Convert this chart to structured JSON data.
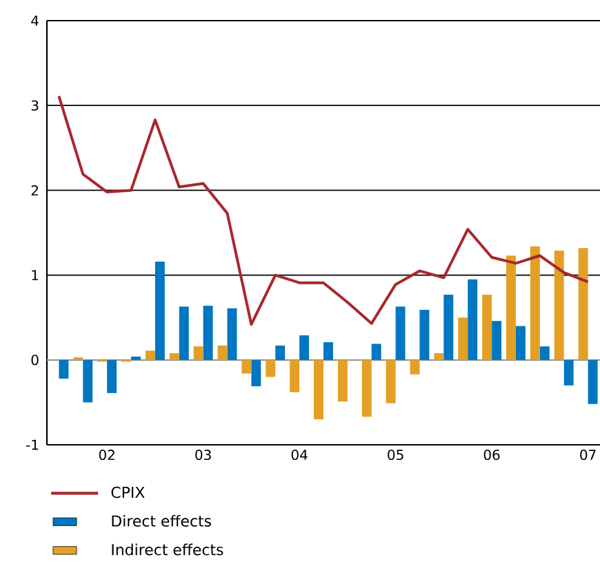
{
  "chart_data": {
    "type": "bar",
    "categories": [
      null,
      null,
      "02",
      null,
      null,
      null,
      "03",
      null,
      null,
      null,
      "04",
      null,
      null,
      null,
      "05",
      null,
      null,
      null,
      "06",
      null,
      null,
      null,
      "07"
    ],
    "series": [
      {
        "name": "CPIX",
        "type": "line",
        "color": "#a8272d",
        "values": [
          3.11,
          2.19,
          1.98,
          2.0,
          2.83,
          2.04,
          2.08,
          1.73,
          0.42,
          1.0,
          0.91,
          0.91,
          0.68,
          0.43,
          0.89,
          1.05,
          0.97,
          1.54,
          1.21,
          1.14,
          1.23,
          1.03,
          0.92
        ]
      },
      {
        "name": "Direct effects",
        "color": "#0077c0",
        "values": [
          -0.22,
          -0.5,
          -0.39,
          0.04,
          1.16,
          0.63,
          0.64,
          0.61,
          -0.31,
          0.17,
          0.29,
          0.21,
          0.0,
          0.19,
          0.63,
          0.59,
          0.77,
          0.95,
          0.46,
          0.4,
          0.16,
          -0.3,
          -0.52
        ]
      },
      {
        "name": "Indirect effects",
        "color": "#e3a024",
        "values": [
          0.0,
          0.03,
          -0.02,
          -0.02,
          0.11,
          0.08,
          0.16,
          0.17,
          -0.16,
          -0.2,
          -0.38,
          -0.7,
          -0.49,
          -0.67,
          -0.51,
          -0.17,
          0.08,
          0.5,
          0.77,
          1.23,
          1.34,
          1.29,
          1.32
        ]
      }
    ],
    "ylim": [
      -1,
      4
    ],
    "yticks": [
      -1,
      0,
      1,
      2,
      3,
      4
    ],
    "grid": "y",
    "ref_lines": [
      {
        "axis": "y",
        "value": 0,
        "color": "#999999"
      }
    ],
    "legend": "bottom"
  }
}
